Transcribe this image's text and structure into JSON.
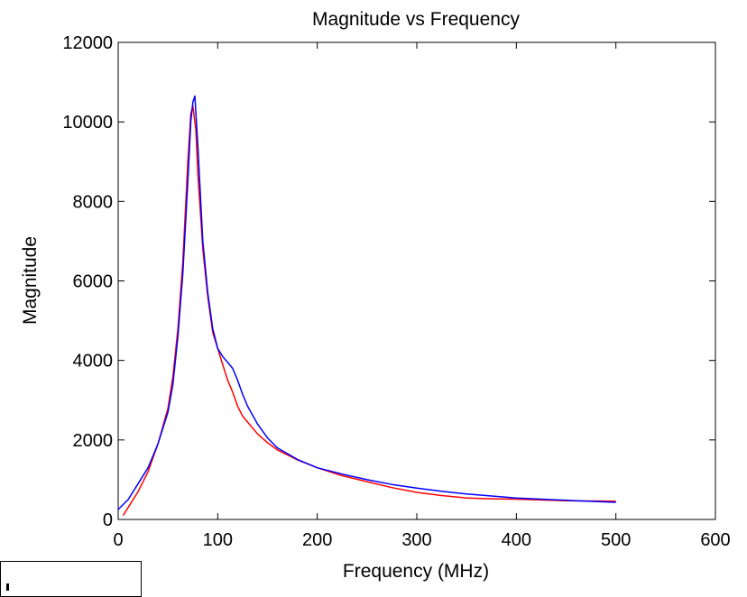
{
  "chart_data": {
    "type": "line",
    "title": "Magnitude vs Frequency",
    "xlabel": "Frequency (MHz)",
    "ylabel": "Magnitude",
    "xlim": [
      0,
      600
    ],
    "ylim": [
      0,
      12000
    ],
    "xticks": [
      0,
      100,
      200,
      300,
      400,
      500,
      600
    ],
    "yticks": [
      0,
      2000,
      4000,
      6000,
      8000,
      10000,
      12000
    ],
    "xtick_labels": [
      "0",
      "100",
      "200",
      "300",
      "400",
      "500",
      "600"
    ],
    "ytick_labels": [
      "0",
      "2000",
      "4000",
      "6000",
      "8000",
      "10000",
      "12000"
    ],
    "grid": false,
    "series": [
      {
        "color": "#ff0000",
        "x": [
          5,
          10,
          20,
          30,
          40,
          50,
          55,
          60,
          65,
          70,
          73,
          75,
          78,
          80,
          85,
          90,
          95,
          100,
          105,
          110,
          115,
          120,
          125,
          130,
          140,
          150,
          160,
          180,
          200,
          225,
          250,
          275,
          300,
          325,
          350,
          375,
          400,
          450,
          500
        ],
        "y": [
          100,
          300,
          700,
          1200,
          1900,
          2800,
          3600,
          4800,
          6500,
          9000,
          10200,
          10400,
          9800,
          8700,
          6800,
          5600,
          4700,
          4300,
          3900,
          3500,
          3200,
          2850,
          2600,
          2450,
          2150,
          1930,
          1750,
          1500,
          1300,
          1100,
          950,
          800,
          680,
          600,
          540,
          520,
          510,
          470,
          460
        ]
      },
      {
        "color": "#0000ff",
        "x": [
          0,
          10,
          20,
          30,
          40,
          50,
          55,
          60,
          65,
          70,
          73,
          75,
          77,
          80,
          85,
          90,
          95,
          100,
          105,
          110,
          115,
          120,
          125,
          130,
          140,
          150,
          160,
          180,
          200,
          225,
          250,
          275,
          300,
          325,
          350,
          375,
          400,
          450,
          500
        ],
        "y": [
          250,
          500,
          900,
          1300,
          1900,
          2700,
          3400,
          4600,
          6200,
          8500,
          10000,
          10500,
          10650,
          9400,
          7000,
          5700,
          4800,
          4300,
          4100,
          3950,
          3800,
          3500,
          3150,
          2850,
          2400,
          2050,
          1800,
          1510,
          1300,
          1140,
          1000,
          880,
          790,
          710,
          640,
          590,
          540,
          480,
          430
        ]
      }
    ]
  }
}
